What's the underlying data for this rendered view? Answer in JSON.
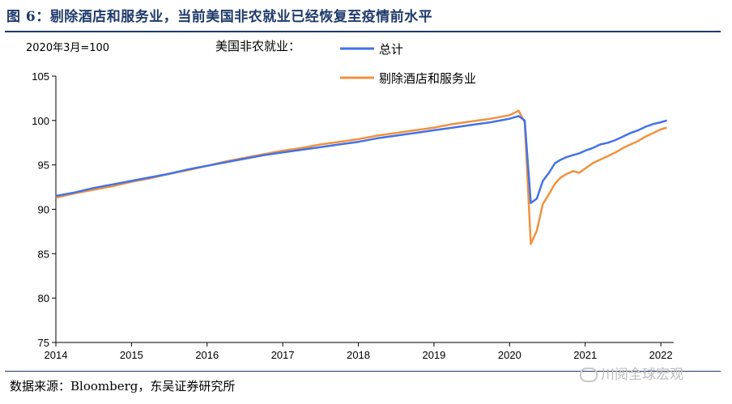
{
  "title": "图 6：剔除酒店和服务业，当前美国非农就业已经恢复至疫情前水平",
  "unit_label": "2020年3月=100",
  "legend_title": "美国非农就业：",
  "source": "数据来源：Bloomberg，东吴证券研究所",
  "watermark": "川阅全球宏观",
  "colors": {
    "series_total": "#4472e8",
    "series_ex_hospitality": "#f0923e",
    "frame": "#1f3a6b",
    "axis": "#000000"
  },
  "chart_data": {
    "type": "line",
    "title": "",
    "xlabel": "",
    "ylabel": "",
    "x_labels": [
      "2014",
      "2015",
      "2016",
      "2017",
      "2018",
      "2019",
      "2020",
      "2021",
      "2022"
    ],
    "xlim": [
      2014.0,
      2022.17
    ],
    "ylim": [
      75,
      105
    ],
    "yticks": [
      75,
      80,
      85,
      90,
      95,
      100,
      105
    ],
    "legend_placement": "top-center",
    "grid": false,
    "series": [
      {
        "name": "总计",
        "color": "#4472e8",
        "points": [
          [
            2014.0,
            91.5
          ],
          [
            2014.25,
            91.9
          ],
          [
            2014.5,
            92.4
          ],
          [
            2014.75,
            92.8
          ],
          [
            2015.0,
            93.2
          ],
          [
            2015.25,
            93.6
          ],
          [
            2015.5,
            94.0
          ],
          [
            2015.75,
            94.5
          ],
          [
            2016.0,
            94.9
          ],
          [
            2016.25,
            95.3
          ],
          [
            2016.5,
            95.7
          ],
          [
            2016.75,
            96.1
          ],
          [
            2017.0,
            96.4
          ],
          [
            2017.25,
            96.7
          ],
          [
            2017.5,
            97.0
          ],
          [
            2017.75,
            97.3
          ],
          [
            2018.0,
            97.6
          ],
          [
            2018.25,
            98.0
          ],
          [
            2018.5,
            98.3
          ],
          [
            2018.75,
            98.6
          ],
          [
            2019.0,
            98.9
          ],
          [
            2019.25,
            99.2
          ],
          [
            2019.5,
            99.5
          ],
          [
            2019.75,
            99.8
          ],
          [
            2020.0,
            100.2
          ],
          [
            2020.12,
            100.5
          ],
          [
            2020.2,
            100.0
          ],
          [
            2020.28,
            90.7
          ],
          [
            2020.36,
            91.2
          ],
          [
            2020.44,
            93.2
          ],
          [
            2020.52,
            94.1
          ],
          [
            2020.6,
            95.2
          ],
          [
            2020.68,
            95.6
          ],
          [
            2020.76,
            95.9
          ],
          [
            2020.84,
            96.1
          ],
          [
            2020.92,
            96.3
          ],
          [
            2021.0,
            96.6
          ],
          [
            2021.1,
            96.9
          ],
          [
            2021.2,
            97.3
          ],
          [
            2021.3,
            97.5
          ],
          [
            2021.4,
            97.8
          ],
          [
            2021.5,
            98.2
          ],
          [
            2021.6,
            98.6
          ],
          [
            2021.7,
            98.9
          ],
          [
            2021.8,
            99.3
          ],
          [
            2021.9,
            99.6
          ],
          [
            2022.0,
            99.8
          ],
          [
            2022.08,
            100.0
          ]
        ]
      },
      {
        "name": "剔除酒店和服务业",
        "color": "#f0923e",
        "points": [
          [
            2014.0,
            91.3
          ],
          [
            2014.25,
            91.8
          ],
          [
            2014.5,
            92.2
          ],
          [
            2014.75,
            92.6
          ],
          [
            2015.0,
            93.1
          ],
          [
            2015.25,
            93.5
          ],
          [
            2015.5,
            94.0
          ],
          [
            2015.75,
            94.4
          ],
          [
            2016.0,
            94.9
          ],
          [
            2016.25,
            95.4
          ],
          [
            2016.5,
            95.8
          ],
          [
            2016.75,
            96.2
          ],
          [
            2017.0,
            96.6
          ],
          [
            2017.25,
            96.9
          ],
          [
            2017.5,
            97.3
          ],
          [
            2017.75,
            97.6
          ],
          [
            2018.0,
            97.9
          ],
          [
            2018.25,
            98.3
          ],
          [
            2018.5,
            98.6
          ],
          [
            2018.75,
            98.9
          ],
          [
            2019.0,
            99.2
          ],
          [
            2019.25,
            99.6
          ],
          [
            2019.5,
            99.9
          ],
          [
            2019.75,
            100.2
          ],
          [
            2020.0,
            100.6
          ],
          [
            2020.12,
            101.1
          ],
          [
            2020.2,
            99.8
          ],
          [
            2020.28,
            86.1
          ],
          [
            2020.36,
            87.6
          ],
          [
            2020.44,
            90.6
          ],
          [
            2020.52,
            91.7
          ],
          [
            2020.6,
            92.9
          ],
          [
            2020.68,
            93.6
          ],
          [
            2020.76,
            94.0
          ],
          [
            2020.84,
            94.3
          ],
          [
            2020.92,
            94.1
          ],
          [
            2021.0,
            94.6
          ],
          [
            2021.1,
            95.2
          ],
          [
            2021.2,
            95.6
          ],
          [
            2021.3,
            96.0
          ],
          [
            2021.4,
            96.4
          ],
          [
            2021.5,
            96.9
          ],
          [
            2021.6,
            97.3
          ],
          [
            2021.7,
            97.7
          ],
          [
            2021.8,
            98.2
          ],
          [
            2021.9,
            98.6
          ],
          [
            2022.0,
            99.0
          ],
          [
            2022.08,
            99.2
          ]
        ]
      }
    ]
  }
}
